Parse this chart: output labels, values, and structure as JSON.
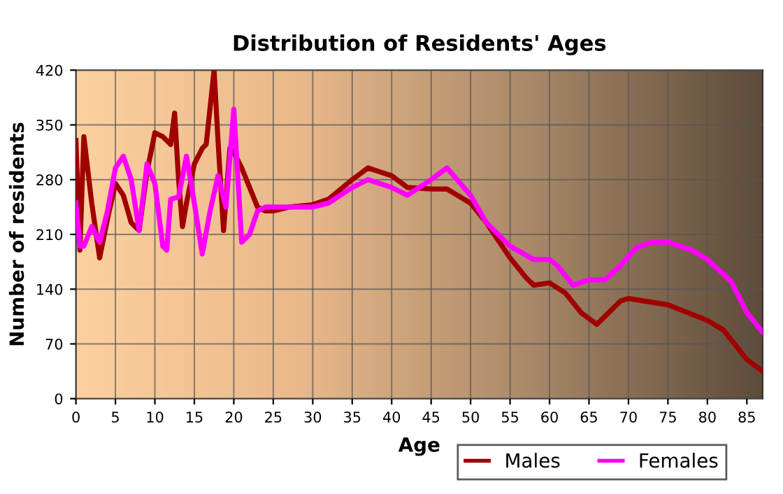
{
  "chart_data": {
    "type": "line",
    "title": "Distribution of Residents' Ages",
    "xlabel": "Age",
    "ylabel": "Number of residents",
    "xlim": [
      0,
      87
    ],
    "xticks": [
      0,
      5,
      10,
      15,
      20,
      25,
      30,
      35,
      40,
      45,
      50,
      55,
      60,
      65,
      70,
      75,
      80,
      85
    ],
    "ylim": [
      0,
      420
    ],
    "yticks": [
      0,
      70,
      140,
      210,
      280,
      350,
      420
    ],
    "grid": true,
    "legend": "bottom right",
    "marker": "none",
    "line_style": "solid",
    "series": [
      {
        "name": "Males",
        "color": "#a00000",
        "x": [
          0,
          0.5,
          1,
          2,
          3,
          4,
          5,
          6,
          7,
          8,
          9,
          10,
          11,
          12,
          12.5,
          13,
          13.5,
          14,
          15,
          16,
          16.5,
          17.5,
          18,
          18.7,
          19.5,
          20,
          21,
          22,
          23,
          24,
          25,
          27,
          30,
          32,
          35,
          37,
          40,
          42,
          45,
          47,
          50,
          52,
          55,
          57,
          58,
          60,
          62,
          64,
          66,
          67,
          69,
          70,
          75,
          80,
          82,
          85,
          87
        ],
        "values": [
          330,
          190,
          335,
          250,
          180,
          230,
          275,
          260,
          225,
          215,
          290,
          340,
          335,
          325,
          365,
          280,
          220,
          250,
          300,
          320,
          325,
          420,
          330,
          215,
          320,
          315,
          295,
          270,
          245,
          240,
          240,
          245,
          248,
          255,
          280,
          295,
          285,
          270,
          268,
          268,
          250,
          225,
          180,
          155,
          145,
          148,
          135,
          110,
          95,
          105,
          125,
          128,
          120,
          100,
          88,
          50,
          35
        ]
      },
      {
        "name": "Females",
        "color": "#ff00ff",
        "x": [
          0,
          0.5,
          1,
          2,
          3,
          4,
          5,
          6,
          7,
          8,
          9,
          10,
          11,
          11.5,
          12,
          13,
          14,
          15,
          16,
          17,
          18,
          19,
          20,
          21,
          22,
          23,
          24,
          30,
          32,
          35,
          37,
          40,
          42,
          45,
          47,
          50,
          52,
          55,
          58,
          60,
          61,
          63,
          65,
          67,
          69,
          71,
          73,
          75,
          78,
          80,
          83,
          85,
          87
        ],
        "values": [
          250,
          195,
          195,
          220,
          200,
          240,
          295,
          310,
          280,
          215,
          300,
          275,
          195,
          190,
          255,
          258,
          310,
          250,
          185,
          240,
          285,
          245,
          370,
          200,
          210,
          240,
          245,
          245,
          250,
          270,
          280,
          270,
          260,
          280,
          295,
          260,
          225,
          195,
          178,
          178,
          170,
          145,
          152,
          152,
          170,
          193,
          200,
          200,
          190,
          178,
          150,
          110,
          85
        ]
      }
    ]
  }
}
